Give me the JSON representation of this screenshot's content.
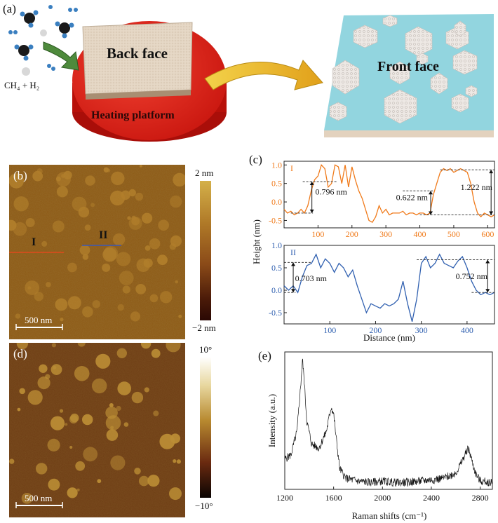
{
  "panel_a": {
    "label": "(a)",
    "gas_label": "CH₄ + H₂",
    "back_face": "Back face",
    "heating_platform": "Heating platform",
    "front_face": "Front face"
  },
  "panel_b": {
    "label": "(b)",
    "line_I": "I",
    "line_II": "II",
    "scale_bar": "500 nm",
    "colorbar_max": "2 nm",
    "colorbar_min": "−2 nm"
  },
  "panel_c": {
    "label": "(c)",
    "ylabel": "Height (nm)",
    "xlabel": "Distance (nm)",
    "profile_I_label": "I",
    "profile_II_label": "II",
    "annot_I": [
      "0.796 nm",
      "0.622 nm",
      "1.222 nm"
    ],
    "annot_II": [
      "0.703 nm",
      "0.752 nm"
    ]
  },
  "panel_d": {
    "label": "(d)",
    "scale_bar": "500 nm",
    "colorbar_max": "10°",
    "colorbar_min": "−10°"
  },
  "panel_e": {
    "label": "(e)",
    "ylabel": "Intensity (a.u.)",
    "xlabel": "Raman shifts (cm⁻¹)"
  },
  "colors": {
    "orange": "#f07a1a",
    "blue": "#3060b0",
    "platform": "#e0231c",
    "substrate": "#8ed3dd",
    "afm_height": "#8a5512",
    "afm_phase": "#6a3a12"
  },
  "chart_data": [
    {
      "type": "line",
      "name": "profile I",
      "title": "",
      "xlabel": "",
      "ylabel": "",
      "xlim": [
        0,
        620
      ],
      "ylim": [
        -0.7,
        1.1
      ],
      "xticks": [
        100,
        200,
        300,
        400,
        500,
        600
      ],
      "yticks": [
        -0.5,
        0.0,
        0.5,
        1.0
      ],
      "grid": false,
      "x": [
        0,
        10,
        20,
        30,
        40,
        50,
        60,
        70,
        80,
        90,
        100,
        110,
        120,
        130,
        140,
        150,
        160,
        170,
        180,
        190,
        200,
        210,
        220,
        230,
        240,
        250,
        260,
        270,
        280,
        290,
        300,
        310,
        320,
        330,
        340,
        350,
        360,
        370,
        380,
        390,
        400,
        410,
        420,
        430,
        440,
        450,
        460,
        470,
        480,
        490,
        500,
        510,
        520,
        530,
        540,
        550,
        560,
        570,
        580,
        590,
        600,
        610,
        620
      ],
      "values": [
        -0.2,
        -0.3,
        -0.25,
        -0.35,
        -0.3,
        -0.2,
        -0.3,
        -0.1,
        0.3,
        0.6,
        0.7,
        1.0,
        0.9,
        0.4,
        0.5,
        1.0,
        0.95,
        0.5,
        1.0,
        0.4,
        0.95,
        0.6,
        0.3,
        0.1,
        -0.2,
        -0.5,
        -0.55,
        -0.4,
        -0.1,
        -0.3,
        -0.2,
        -0.35,
        -0.3,
        -0.3,
        -0.3,
        -0.25,
        -0.35,
        -0.3,
        -0.3,
        -0.35,
        -0.3,
        -0.3,
        -0.35,
        -0.3,
        0.2,
        0.5,
        0.8,
        0.9,
        0.85,
        0.9,
        0.8,
        0.85,
        0.9,
        0.85,
        0.8,
        0.5,
        0.0,
        -0.3,
        -0.4,
        -0.3,
        -0.35,
        -0.4,
        -0.35
      ]
    },
    {
      "type": "line",
      "name": "profile II",
      "title": "",
      "xlabel": "Distance (nm)",
      "ylabel": "Height (nm)",
      "xlim": [
        0,
        460
      ],
      "ylim": [
        -0.75,
        1.0
      ],
      "xticks": [
        100,
        200,
        300,
        400
      ],
      "yticks": [
        -0.5,
        0.0,
        0.5,
        1.0
      ],
      "grid": false,
      "x": [
        0,
        10,
        20,
        30,
        40,
        50,
        60,
        70,
        80,
        90,
        100,
        110,
        120,
        130,
        140,
        150,
        160,
        170,
        180,
        190,
        200,
        210,
        220,
        230,
        240,
        250,
        260,
        270,
        280,
        290,
        300,
        310,
        320,
        330,
        340,
        350,
        360,
        370,
        380,
        390,
        400,
        410,
        420,
        430,
        440,
        450,
        460
      ],
      "values": [
        0.1,
        0.0,
        0.1,
        -0.05,
        0.3,
        0.55,
        0.6,
        0.8,
        0.5,
        0.7,
        0.6,
        0.4,
        0.6,
        0.5,
        0.3,
        0.45,
        0.1,
        -0.2,
        -0.5,
        -0.3,
        -0.35,
        -0.4,
        -0.3,
        -0.35,
        -0.3,
        -0.2,
        0.2,
        -0.3,
        -0.7,
        -0.2,
        0.6,
        0.75,
        0.5,
        0.6,
        0.8,
        0.6,
        0.55,
        0.5,
        0.65,
        0.75,
        0.5,
        0.2,
        0.0,
        -0.1,
        -0.05,
        -0.1,
        -0.05
      ]
    },
    {
      "type": "line",
      "name": "Raman spectrum",
      "title": "",
      "xlabel": "Raman shifts (cm⁻¹)",
      "ylabel": "Intensity (a.u.)",
      "xlim": [
        1200,
        2900
      ],
      "xticks": [
        1200,
        1600,
        2000,
        2400,
        2800
      ],
      "grid": false,
      "x": [
        1200,
        1250,
        1300,
        1330,
        1345,
        1360,
        1380,
        1420,
        1480,
        1540,
        1580,
        1600,
        1620,
        1650,
        1700,
        1800,
        1900,
        2000,
        2100,
        2200,
        2300,
        2400,
        2500,
        2600,
        2650,
        2680,
        2700,
        2720,
        2760,
        2800,
        2900
      ],
      "values": [
        0.22,
        0.25,
        0.42,
        0.75,
        0.95,
        0.78,
        0.5,
        0.33,
        0.3,
        0.42,
        0.6,
        0.55,
        0.38,
        0.15,
        0.08,
        0.06,
        0.05,
        0.06,
        0.05,
        0.05,
        0.06,
        0.07,
        0.08,
        0.12,
        0.2,
        0.26,
        0.3,
        0.25,
        0.12,
        0.06,
        0.05
      ]
    }
  ]
}
